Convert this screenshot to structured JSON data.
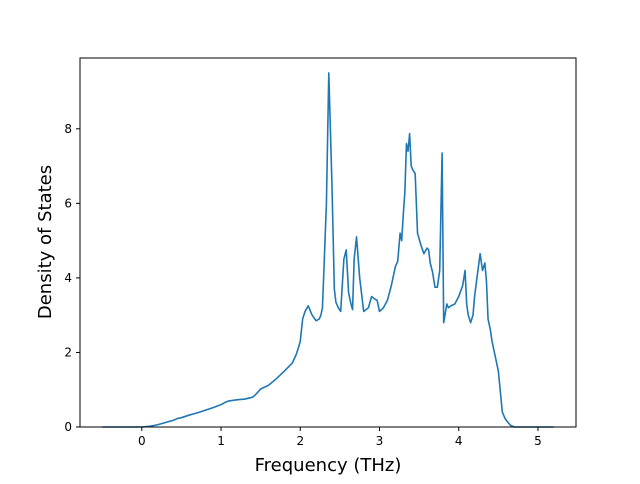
{
  "chart_data": {
    "type": "line",
    "title": "",
    "xlabel": "Frequency (THz)",
    "ylabel": "Density of States",
    "xlim": [
      -0.78,
      5.48
    ],
    "ylim": [
      0,
      9.9
    ],
    "xticks": [
      0,
      1,
      2,
      3,
      4,
      5
    ],
    "yticks": [
      0,
      2,
      4,
      6,
      8
    ],
    "grid": false,
    "legend": "none",
    "series": [
      {
        "color": "#1f77b4",
        "x": [
          -0.5,
          0.0,
          0.1,
          0.2,
          0.3,
          0.4,
          0.45,
          0.5,
          0.6,
          0.7,
          0.8,
          0.9,
          1.0,
          1.05,
          1.1,
          1.2,
          1.3,
          1.4,
          1.45,
          1.5,
          1.6,
          1.7,
          1.8,
          1.9,
          1.95,
          1.98,
          2.0,
          2.03,
          2.06,
          2.1,
          2.15,
          2.2,
          2.24,
          2.26,
          2.28,
          2.3,
          2.33,
          2.36,
          2.4,
          2.43,
          2.45,
          2.48,
          2.51,
          2.55,
          2.58,
          2.61,
          2.64,
          2.66,
          2.68,
          2.71,
          2.75,
          2.8,
          2.86,
          2.9,
          2.93,
          2.97,
          3.0,
          3.05,
          3.1,
          3.15,
          3.18,
          3.2,
          3.23,
          3.26,
          3.28,
          3.3,
          3.32,
          3.34,
          3.36,
          3.38,
          3.4,
          3.42,
          3.45,
          3.48,
          3.52,
          3.56,
          3.6,
          3.62,
          3.64,
          3.67,
          3.7,
          3.73,
          3.76,
          3.79,
          3.81,
          3.83,
          3.85,
          3.87,
          3.9,
          3.95,
          4.0,
          4.05,
          4.08,
          4.1,
          4.12,
          4.15,
          4.18,
          4.2,
          4.23,
          4.27,
          4.3,
          4.33,
          4.35,
          4.37,
          4.4,
          4.42,
          4.45,
          4.5,
          4.55,
          4.58,
          4.6,
          4.65,
          4.7,
          4.75,
          4.8,
          5.0,
          5.2
        ],
        "y": [
          0,
          0,
          0.02,
          0.06,
          0.12,
          0.18,
          0.23,
          0.25,
          0.32,
          0.38,
          0.45,
          0.52,
          0.6,
          0.66,
          0.7,
          0.73,
          0.75,
          0.8,
          0.9,
          1.02,
          1.12,
          1.3,
          1.5,
          1.72,
          1.95,
          2.15,
          2.3,
          2.9,
          3.1,
          3.25,
          3.0,
          2.85,
          2.9,
          3.0,
          3.2,
          4.3,
          6.0,
          9.5,
          6.5,
          3.7,
          3.35,
          3.2,
          3.1,
          4.5,
          4.75,
          3.6,
          3.3,
          3.15,
          4.5,
          5.1,
          4.0,
          3.1,
          3.2,
          3.5,
          3.45,
          3.4,
          3.1,
          3.2,
          3.4,
          3.8,
          4.1,
          4.3,
          4.45,
          5.2,
          5.0,
          5.7,
          6.3,
          7.6,
          7.4,
          7.87,
          7.0,
          6.9,
          6.8,
          5.2,
          4.9,
          4.65,
          4.8,
          4.75,
          4.4,
          4.15,
          3.75,
          3.75,
          4.2,
          7.35,
          2.8,
          3.05,
          3.3,
          3.2,
          3.25,
          3.3,
          3.5,
          3.8,
          4.2,
          3.3,
          3.0,
          2.8,
          3.0,
          3.5,
          4.0,
          4.65,
          4.2,
          4.4,
          3.9,
          2.9,
          2.6,
          2.3,
          2.0,
          1.5,
          0.4,
          0.25,
          0.18,
          0.05,
          0,
          0,
          0,
          0,
          0
        ]
      }
    ]
  }
}
